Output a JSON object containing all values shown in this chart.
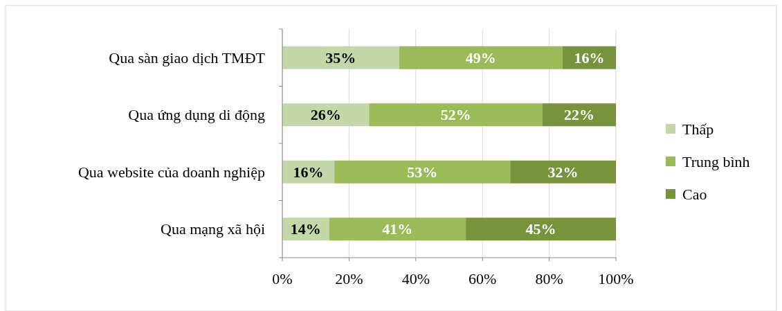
{
  "chart_data": {
    "type": "bar",
    "orientation": "horizontal",
    "stacked": true,
    "categories": [
      "Qua sàn giao dịch TMĐT",
      "Qua ứng dụng di động",
      "Qua website của doanh nghiệp",
      "Qua mạng xã hội"
    ],
    "series": [
      {
        "name": "Thấp",
        "color": "#c4d7a9",
        "values": [
          35,
          26,
          15.6,
          14
        ],
        "value_labels": [
          "35%",
          "26%",
          "16%",
          "14%"
        ]
      },
      {
        "name": "Trung bình",
        "color": "#9bbb59",
        "values": [
          49,
          52,
          52.7,
          41
        ],
        "value_labels": [
          "49%",
          "52%",
          "53%",
          "41%"
        ]
      },
      {
        "name": "Cao",
        "color": "#77933c",
        "values": [
          16,
          22,
          31.7,
          45
        ],
        "value_labels": [
          "16%",
          "22%",
          "32%",
          "45%"
        ]
      }
    ],
    "xlim": [
      0,
      100
    ],
    "xticks": [
      {
        "value": 0,
        "label": "0%"
      },
      {
        "value": 20,
        "label": "20%"
      },
      {
        "value": 40,
        "label": "40%"
      },
      {
        "value": 60,
        "label": "60%"
      },
      {
        "value": 80,
        "label": "80%"
      },
      {
        "value": 100,
        "label": "100%"
      }
    ],
    "grid": "x",
    "legend": "right"
  }
}
